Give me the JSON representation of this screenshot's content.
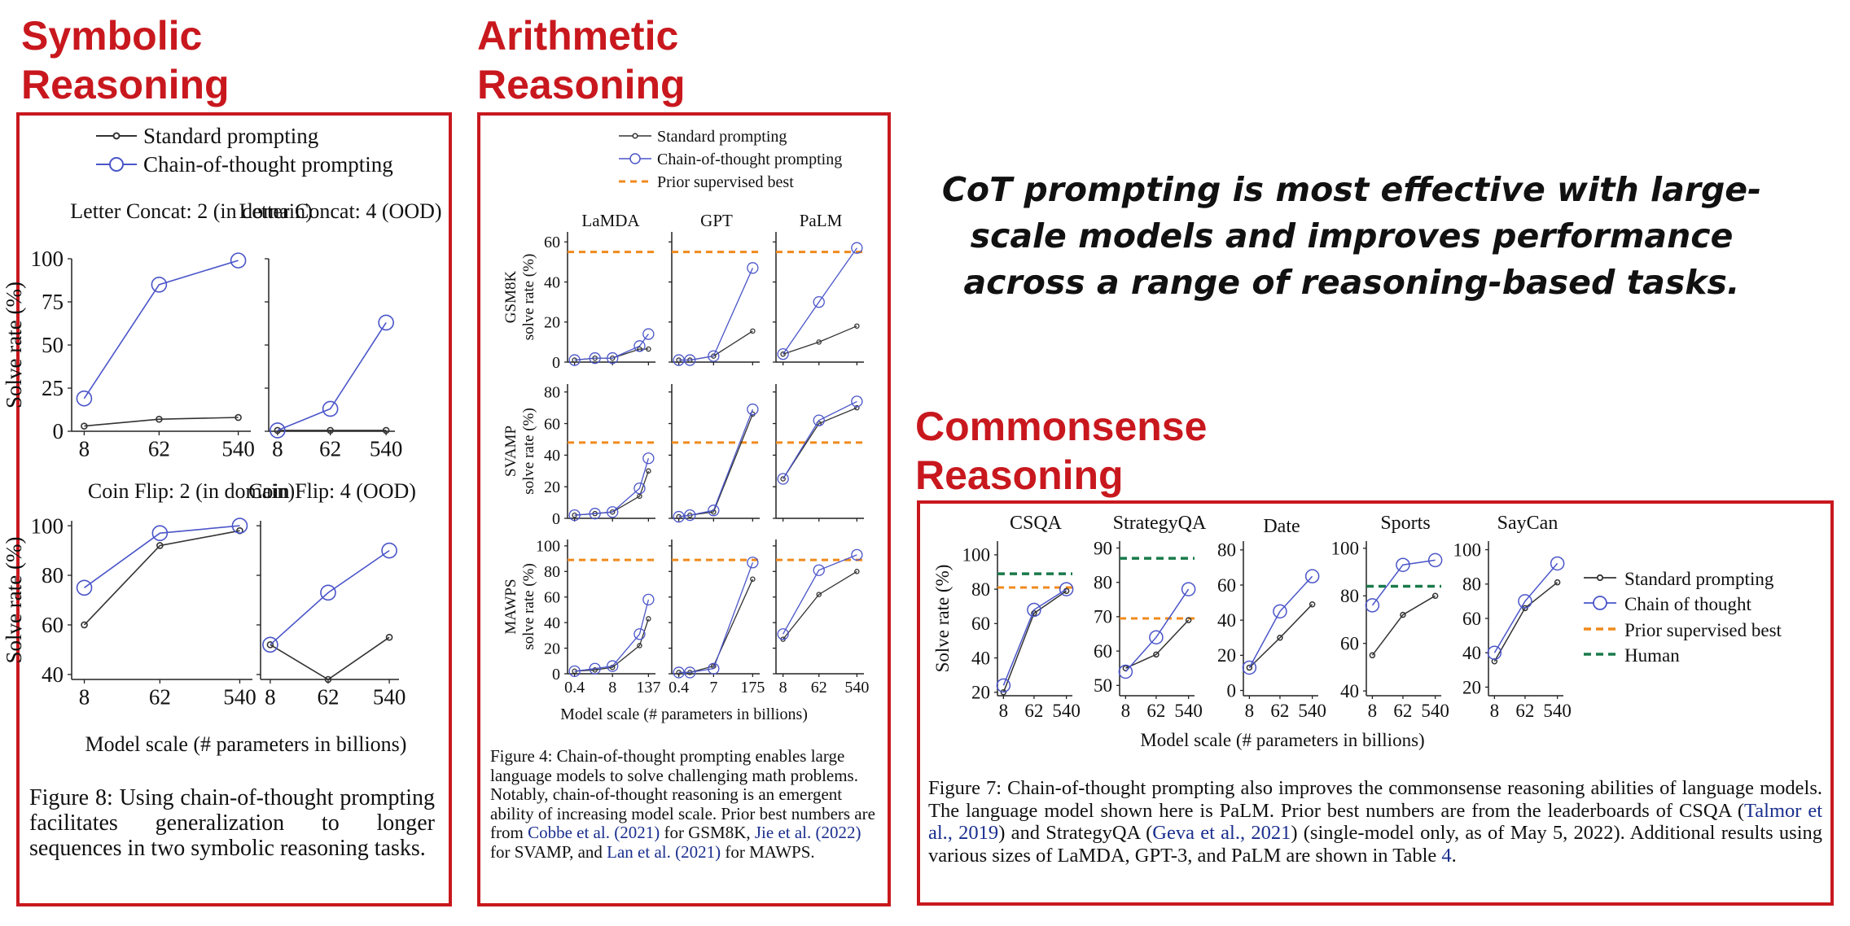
{
  "headings": {
    "symbolic": [
      "Symbolic",
      "Reasoning"
    ],
    "arithmetic": [
      "Arithmetic",
      "Reasoning"
    ],
    "commonsense": [
      "Commonsense",
      "Reasoning"
    ]
  },
  "tagline": "CoT prompting is most effective with large-scale models and improves performance across a range of reasoning-based tasks.",
  "colors": {
    "accent_red": "#c8181e",
    "cot_blue": "#4a55c8",
    "standard_gray": "#333333",
    "prior_orange": "#f08a1c",
    "human_green": "#1a7a4a"
  },
  "symbolic": {
    "legend": [
      "Standard prompting",
      "Chain-of-thought prompting"
    ],
    "xlabel": "Model scale (# parameters in billions)",
    "caption": "Figure 8:    Using chain-of-thought prompting facilitates generalization to longer sequences in two symbolic reasoning tasks."
  },
  "arithmetic": {
    "legend": [
      "Standard prompting",
      "Chain-of-thought prompting",
      "Prior supervised best"
    ],
    "xlabel": "Model scale (# parameters in billions)",
    "caption": {
      "p1": "Figure 4:   Chain-of-thought prompting enables large language models to solve challenging math problems.  Notably, chain-of-thought reasoning is an emergent ability of increasing model scale. Prior best numbers are from ",
      "ref1": "Cobbe et al. (2021)",
      "p2": " for GSM8K, ",
      "ref2": "Jie et al. (2022)",
      "p3": " for SVAMP, and ",
      "ref3": "Lan et al. (2021)",
      "p4": " for MAWPS."
    }
  },
  "commonsense": {
    "legend": [
      "Standard prompting",
      "Chain of thought",
      "Prior supervised best",
      "Human"
    ],
    "xlabel": "Model scale (# parameters in billions)",
    "caption": {
      "p1": "Figure 7:   Chain-of-thought prompting also improves the commonsense reasoning abilities of language models.  The language model shown here is PaLM. Prior best numbers are from the leaderboards of CSQA (",
      "ref1": "Talmor et al., 2019",
      "p2": ") and StrategyQA (",
      "ref2": "Geva et al., 2021",
      "p3": ") (single-model only, as of May 5, 2022). Additional results using various sizes of LaMDA, GPT-3, and PaLM are shown in Table ",
      "ref3": "4",
      "p4": "."
    }
  },
  "chart_data": [
    {
      "type": "line",
      "title": "Letter Concat: 2 (in domain)",
      "ylabel": "Solve rate (%)",
      "categories": [
        "8",
        "62",
        "540"
      ],
      "ylim": [
        0,
        100
      ],
      "yticks": [
        0,
        25,
        50,
        75,
        100
      ],
      "series": [
        {
          "name": "Standard prompting",
          "values": [
            3,
            7,
            8
          ]
        },
        {
          "name": "Chain-of-thought prompting",
          "values": [
            19,
            85,
            99
          ]
        }
      ]
    },
    {
      "type": "line",
      "title": "Letter Concat: 4 (OOD)",
      "categories": [
        "8",
        "62",
        "540"
      ],
      "ylim": [
        0,
        100
      ],
      "series": [
        {
          "name": "Standard prompting",
          "values": [
            0.5,
            0.5,
            0.5
          ]
        },
        {
          "name": "Chain-of-thought prompting",
          "values": [
            0.5,
            13,
            63
          ]
        }
      ]
    },
    {
      "type": "line",
      "title": "Coin Flip: 2 (in domain)",
      "ylabel": "Solve rate (%)",
      "categories": [
        "8",
        "62",
        "540"
      ],
      "ylim": [
        38,
        102
      ],
      "yticks": [
        40,
        60,
        80,
        100
      ],
      "series": [
        {
          "name": "Standard prompting",
          "values": [
            60,
            92,
            98
          ]
        },
        {
          "name": "Chain-of-thought prompting",
          "values": [
            75,
            97,
            100
          ]
        }
      ]
    },
    {
      "type": "line",
      "title": "Coin Flip: 4 (OOD)",
      "categories": [
        "8",
        "62",
        "540"
      ],
      "ylim": [
        38,
        102
      ],
      "series": [
        {
          "name": "Standard prompting",
          "values": [
            52,
            38,
            55
          ]
        },
        {
          "name": "Chain-of-thought prompting",
          "values": [
            52,
            73,
            90
          ]
        }
      ]
    },
    {
      "type": "line",
      "title": "LaMDA",
      "row": "GSM8K",
      "ylabel": "GSM8K solve rate (%)",
      "categories": [
        "0.4",
        "8",
        "137"
      ],
      "ylim": [
        0,
        65
      ],
      "yticks": [
        0,
        20,
        40,
        60
      ],
      "prior": 55,
      "series": [
        {
          "name": "Standard prompting",
          "values": [
            [
              0.4,
              1
            ],
            [
              2,
              2
            ],
            [
              8,
              2
            ],
            [
              68,
              6.5
            ],
            [
              137,
              6.5
            ]
          ]
        },
        {
          "name": "Chain-of-thought prompting",
          "values": [
            [
              0.4,
              1
            ],
            [
              2,
              2
            ],
            [
              8,
              2
            ],
            [
              68,
              8
            ],
            [
              137,
              14
            ]
          ]
        }
      ]
    },
    {
      "type": "line",
      "title": "GPT",
      "row": "GSM8K",
      "categories": [
        "0.4",
        "7",
        "175"
      ],
      "ylim": [
        0,
        65
      ],
      "prior": 55,
      "series": [
        {
          "name": "Standard prompting",
          "values": [
            [
              0.4,
              1
            ],
            [
              1,
              1
            ],
            [
              7,
              3
            ],
            [
              175,
              15.5
            ]
          ]
        },
        {
          "name": "Chain-of-thought prompting",
          "values": [
            [
              0.4,
              1
            ],
            [
              1,
              1
            ],
            [
              7,
              3
            ],
            [
              175,
              47
            ]
          ]
        }
      ]
    },
    {
      "type": "line",
      "title": "PaLM",
      "row": "GSM8K",
      "categories": [
        "8",
        "62",
        "540"
      ],
      "ylim": [
        0,
        65
      ],
      "prior": 55,
      "series": [
        {
          "name": "Standard prompting",
          "values": [
            4,
            10,
            18
          ]
        },
        {
          "name": "Chain-of-thought prompting",
          "values": [
            4,
            30,
            57
          ]
        }
      ]
    },
    {
      "type": "line",
      "row": "SVAMP",
      "ylabel": "SVAMP solve rate (%)",
      "categories": [
        "0.4",
        "8",
        "137"
      ],
      "ylim": [
        0,
        85
      ],
      "yticks": [
        0,
        20,
        40,
        60,
        80
      ],
      "prior": 48,
      "series": [
        {
          "name": "Standard prompting",
          "values": [
            [
              0.4,
              2
            ],
            [
              2,
              3
            ],
            [
              8,
              4
            ],
            [
              68,
              14
            ],
            [
              137,
              30
            ]
          ]
        },
        {
          "name": "Chain-of-thought prompting",
          "values": [
            [
              0.4,
              2
            ],
            [
              2,
              3
            ],
            [
              8,
              4
            ],
            [
              68,
              19
            ],
            [
              137,
              38
            ]
          ]
        }
      ]
    },
    {
      "type": "line",
      "row": "SVAMP",
      "categories": [
        "0.4",
        "7",
        "175"
      ],
      "ylim": [
        0,
        85
      ],
      "prior": 48,
      "series": [
        {
          "name": "Standard prompting",
          "values": [
            [
              0.4,
              1
            ],
            [
              1,
              2
            ],
            [
              7,
              4
            ],
            [
              175,
              66
            ]
          ]
        },
        {
          "name": "Chain-of-thought prompting",
          "values": [
            [
              0.4,
              1
            ],
            [
              1,
              2
            ],
            [
              7,
              5
            ],
            [
              175,
              69
            ]
          ]
        }
      ]
    },
    {
      "type": "line",
      "row": "SVAMP",
      "categories": [
        "8",
        "62",
        "540"
      ],
      "ylim": [
        0,
        85
      ],
      "prior": 48,
      "series": [
        {
          "name": "Standard prompting",
          "values": [
            25,
            60,
            70
          ]
        },
        {
          "name": "Chain-of-thought prompting",
          "values": [
            25,
            62,
            74
          ]
        }
      ]
    },
    {
      "type": "line",
      "row": "MAWPS",
      "ylabel": "MAWPS solve rate (%)",
      "categories": [
        "0.4",
        "8",
        "137"
      ],
      "ylim": [
        0,
        105
      ],
      "yticks": [
        0,
        20,
        40,
        60,
        80,
        100
      ],
      "prior": 89,
      "series": [
        {
          "name": "Standard prompting",
          "values": [
            [
              0.4,
              2
            ],
            [
              2,
              3
            ],
            [
              8,
              5
            ],
            [
              68,
              22
            ],
            [
              137,
              43
            ]
          ]
        },
        {
          "name": "Chain-of-thought prompting",
          "values": [
            [
              0.4,
              2
            ],
            [
              2,
              4
            ],
            [
              8,
              6
            ],
            [
              68,
              31
            ],
            [
              137,
              58
            ]
          ]
        }
      ]
    },
    {
      "type": "line",
      "row": "MAWPS",
      "categories": [
        "0.4",
        "7",
        "175"
      ],
      "ylim": [
        0,
        105
      ],
      "prior": 89,
      "series": [
        {
          "name": "Standard prompting",
          "values": [
            [
              0.4,
              1
            ],
            [
              1,
              1
            ],
            [
              7,
              6
            ],
            [
              175,
              74
            ]
          ]
        },
        {
          "name": "Chain-of-thought prompting",
          "values": [
            [
              0.4,
              1
            ],
            [
              1,
              1
            ],
            [
              7,
              4
            ],
            [
              175,
              87
            ]
          ]
        }
      ]
    },
    {
      "type": "line",
      "row": "MAWPS",
      "categories": [
        "8",
        "62",
        "540"
      ],
      "ylim": [
        0,
        105
      ],
      "prior": 89,
      "series": [
        {
          "name": "Standard prompting",
          "values": [
            27,
            62,
            80
          ]
        },
        {
          "name": "Chain-of-thought prompting",
          "values": [
            31,
            81,
            93
          ]
        }
      ]
    },
    {
      "type": "line",
      "title": "CSQA",
      "ylabel": "Solve rate (%)",
      "categories": [
        "8",
        "62",
        "540"
      ],
      "ylim": [
        18,
        108
      ],
      "yticks": [
        20,
        40,
        60,
        80,
        100
      ],
      "prior": 81,
      "human": 89,
      "series": [
        {
          "name": "Standard prompting",
          "values": [
            20,
            66,
            79
          ]
        },
        {
          "name": "Chain of thought",
          "values": [
            24,
            68,
            80
          ]
        }
      ]
    },
    {
      "type": "line",
      "title": "StrategyQA",
      "categories": [
        "8",
        "62",
        "540"
      ],
      "ylim": [
        47,
        92
      ],
      "yticks": [
        50,
        60,
        70,
        80,
        90
      ],
      "prior": 69.5,
      "human": 87,
      "series": [
        {
          "name": "Standard prompting",
          "values": [
            55,
            59,
            69
          ]
        },
        {
          "name": "Chain of thought",
          "values": [
            54,
            64,
            78
          ]
        }
      ]
    },
    {
      "type": "line",
      "title": "Date",
      "categories": [
        "8",
        "62",
        "540"
      ],
      "ylim": [
        -3,
        85
      ],
      "yticks": [
        0,
        20,
        40,
        60,
        80
      ],
      "series": [
        {
          "name": "Standard prompting",
          "values": [
            13,
            30,
            49
          ]
        },
        {
          "name": "Chain of thought",
          "values": [
            13,
            45,
            65
          ]
        }
      ]
    },
    {
      "type": "line",
      "title": "Sports",
      "categories": [
        "8",
        "62",
        "540"
      ],
      "ylim": [
        38,
        103
      ],
      "yticks": [
        40,
        60,
        80,
        100
      ],
      "human": 84,
      "series": [
        {
          "name": "Standard prompting",
          "values": [
            55,
            72,
            80
          ]
        },
        {
          "name": "Chain of thought",
          "values": [
            76,
            93,
            95
          ]
        }
      ]
    },
    {
      "type": "line",
      "title": "SayCan",
      "categories": [
        "8",
        "62",
        "540"
      ],
      "ylim": [
        15,
        105
      ],
      "yticks": [
        20,
        40,
        60,
        80,
        100
      ],
      "series": [
        {
          "name": "Standard prompting",
          "values": [
            35,
            66,
            81
          ]
        },
        {
          "name": "Chain of thought",
          "values": [
            40,
            70,
            92
          ]
        }
      ]
    }
  ]
}
